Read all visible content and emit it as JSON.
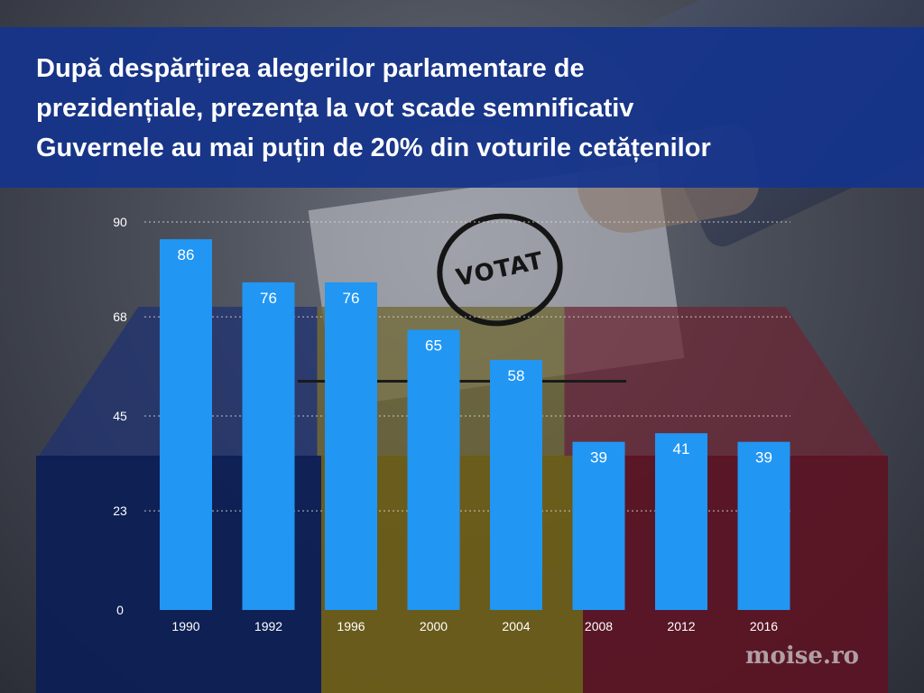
{
  "title_lines": [
    "După despărțirea alegerilor parlamentare de",
    "prezidențiale, prezența la vot scade semnificativ",
    "Guvernele au mai puțin de 20% din voturile cetățenilor"
  ],
  "background": {
    "stamp_text": "VOTAT"
  },
  "watermark": "moise.ro",
  "colors": {
    "bar": "#2196f3",
    "banner": "#14348c",
    "text": "#ffffff",
    "grid": "#d9d9d9"
  },
  "chart_data": {
    "type": "bar",
    "title": "",
    "xlabel": "",
    "ylabel": "",
    "categories": [
      "1990",
      "1992",
      "1996",
      "2000",
      "2004",
      "2008",
      "2012",
      "2016"
    ],
    "values": [
      86,
      76,
      76,
      65,
      58,
      39,
      41,
      39
    ],
    "data_labels": [
      "86",
      "76",
      "76",
      "65",
      "58",
      "39",
      "41",
      "39"
    ],
    "ylim": [
      0,
      90
    ],
    "yticks": [
      0,
      23,
      45,
      68,
      90
    ],
    "grid": true,
    "legend": "none"
  }
}
